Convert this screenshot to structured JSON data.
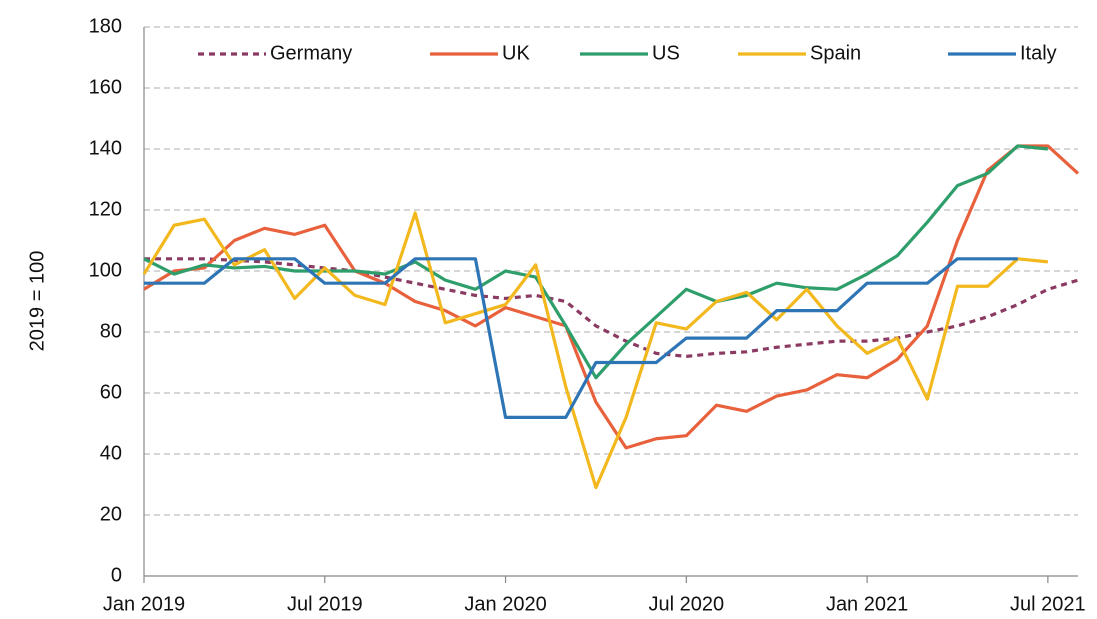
{
  "chart_data": {
    "type": "line",
    "y_label": "2019 = 100",
    "x": [
      "2019-01",
      "2019-02",
      "2019-03",
      "2019-04",
      "2019-05",
      "2019-06",
      "2019-07",
      "2019-08",
      "2019-09",
      "2019-10",
      "2019-11",
      "2019-12",
      "2020-01",
      "2020-02",
      "2020-03",
      "2020-04",
      "2020-05",
      "2020-06",
      "2020-07",
      "2020-08",
      "2020-09",
      "2020-10",
      "2020-11",
      "2020-12",
      "2021-01",
      "2021-02",
      "2021-03",
      "2021-04",
      "2021-05",
      "2021-06",
      "2021-07",
      "2021-08"
    ],
    "xlim": [
      "2019-01",
      "2021-08"
    ],
    "xticks": [
      {
        "value": "2019-01",
        "label": "Jan 2019"
      },
      {
        "value": "2019-07",
        "label": "Jul 2019"
      },
      {
        "value": "2020-01",
        "label": "Jan 2020"
      },
      {
        "value": "2020-07",
        "label": "Jul 2020"
      },
      {
        "value": "2021-01",
        "label": "Jan 2021"
      },
      {
        "value": "2021-07",
        "label": "Jul 2021"
      }
    ],
    "ylim": [
      0,
      180
    ],
    "yticks": [
      0,
      20,
      40,
      60,
      80,
      100,
      120,
      140,
      160,
      180
    ],
    "grid": true,
    "legend": "top",
    "series": [
      {
        "name": "Germany",
        "color": "#8b3a62",
        "dashed": true,
        "values": [
          104,
          104,
          104,
          103.5,
          103,
          102,
          101,
          100,
          98,
          96,
          94,
          92,
          91,
          92,
          90,
          82,
          77,
          73,
          72,
          73,
          73.5,
          75,
          76,
          77,
          77,
          78,
          80,
          82,
          85,
          89,
          94,
          97
        ]
      },
      {
        "name": "UK",
        "color": "#e8613c",
        "values": [
          94,
          100,
          101,
          110,
          114,
          112,
          115,
          100,
          96,
          90,
          87,
          82,
          88,
          85,
          82,
          57,
          42,
          45,
          46,
          56,
          54,
          59,
          61,
          66,
          65,
          71,
          82,
          110,
          133,
          141,
          141,
          132
        ]
      },
      {
        "name": "US",
        "color": "#2e9e6b",
        "values": [
          104,
          99,
          102,
          101,
          101.5,
          100,
          100,
          100,
          99,
          103,
          97,
          94,
          100,
          98,
          82,
          65,
          76,
          85,
          94,
          90,
          92,
          96,
          94.5,
          94,
          99,
          105,
          116,
          128,
          132,
          141,
          140,
          null
        ]
      },
      {
        "name": "Spain",
        "color": "#f2b81e",
        "values": [
          99,
          115,
          117,
          102,
          107,
          91,
          101,
          92,
          89,
          119,
          83,
          86,
          89,
          102,
          62,
          29,
          52,
          83,
          81,
          90,
          93,
          84,
          94,
          82,
          73,
          78,
          58,
          95,
          95,
          104,
          103,
          null
        ]
      },
      {
        "name": "Italy",
        "color": "#2e75b6",
        "values": [
          96,
          96,
          96,
          104,
          104,
          104,
          96,
          96,
          96,
          104,
          104,
          104,
          52,
          52,
          52,
          70,
          70,
          70,
          78,
          78,
          78,
          87,
          87,
          87,
          96,
          96,
          96,
          104,
          104,
          104,
          null,
          null
        ]
      }
    ]
  }
}
